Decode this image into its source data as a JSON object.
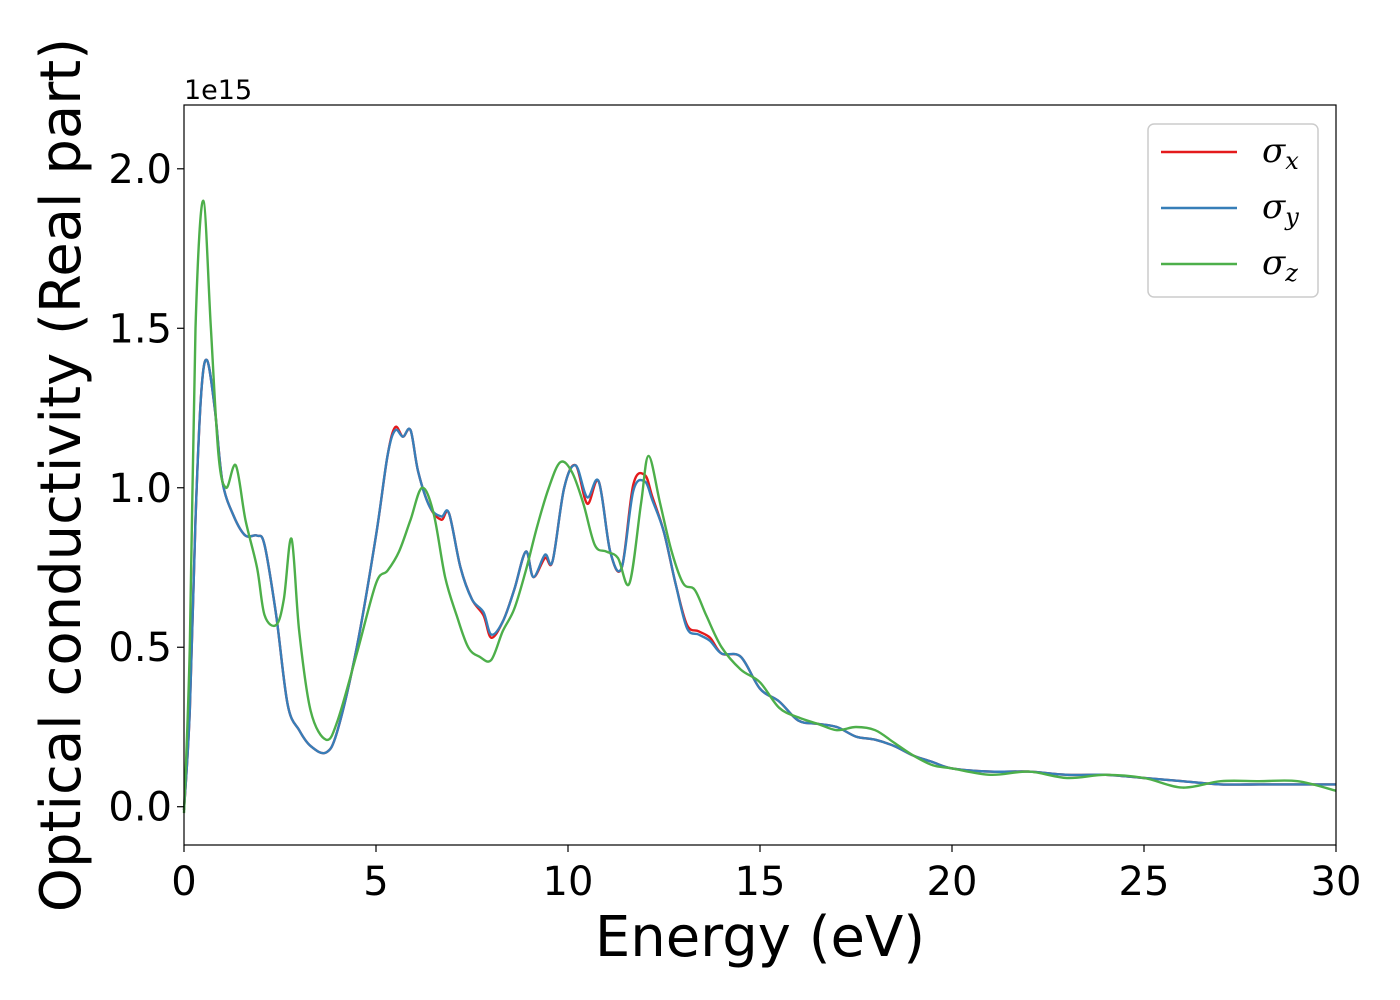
{
  "chart_data": {
    "type": "line",
    "xlabel": "Energy (eV)",
    "ylabel": "Optical conductivity (Real part)",
    "y_offset_label": "1e15",
    "xlim": [
      0,
      30
    ],
    "ylim": [
      -0.12,
      2.2
    ],
    "x_ticks": [
      0,
      5,
      10,
      15,
      20,
      25,
      30
    ],
    "x_tick_labels": [
      "0",
      "5",
      "10",
      "15",
      "20",
      "25",
      "30"
    ],
    "y_ticks": [
      0.0,
      0.5,
      1.0,
      1.5,
      2.0
    ],
    "y_tick_labels": [
      "0.0",
      "0.5",
      "1.0",
      "1.5",
      "2.0"
    ],
    "grid": false,
    "legend_position": "top-right",
    "series": [
      {
        "name": "σx",
        "symbol": "σ",
        "subscript": "x",
        "color": "#e41a1c",
        "x": [
          0,
          0.15,
          0.3,
          0.45,
          0.6,
          0.8,
          1.0,
          1.3,
          1.6,
          1.9,
          2.1,
          2.4,
          2.7,
          3.0,
          3.3,
          3.7,
          4.0,
          4.5,
          5.0,
          5.3,
          5.5,
          5.7,
          5.9,
          6.1,
          6.4,
          6.7,
          6.9,
          7.2,
          7.5,
          7.8,
          8.0,
          8.3,
          8.6,
          8.9,
          9.1,
          9.4,
          9.6,
          9.9,
          10.2,
          10.5,
          10.8,
          11.1,
          11.4,
          11.7,
          12.0,
          12.2,
          12.5,
          12.8,
          13.1,
          13.4,
          13.7,
          14.0,
          14.5,
          15.0,
          15.5,
          16.0,
          16.5,
          17.0,
          17.5,
          18.0,
          18.5,
          19.0,
          19.5,
          20.0,
          21.0,
          22.0,
          23.0,
          24.0,
          25.0,
          26.0,
          27.0,
          28.0,
          29.0,
          30.0
        ],
        "values": [
          -0.01,
          0.3,
          0.9,
          1.3,
          1.4,
          1.25,
          1.02,
          0.91,
          0.85,
          0.85,
          0.82,
          0.6,
          0.32,
          0.24,
          0.19,
          0.17,
          0.24,
          0.5,
          0.85,
          1.1,
          1.19,
          1.16,
          1.18,
          1.05,
          0.94,
          0.9,
          0.92,
          0.75,
          0.65,
          0.6,
          0.53,
          0.58,
          0.68,
          0.8,
          0.72,
          0.78,
          0.77,
          1.0,
          1.07,
          0.95,
          1.02,
          0.8,
          0.75,
          1.01,
          1.04,
          0.97,
          0.86,
          0.7,
          0.57,
          0.55,
          0.53,
          0.48,
          0.47,
          0.37,
          0.33,
          0.27,
          0.26,
          0.25,
          0.22,
          0.21,
          0.19,
          0.16,
          0.14,
          0.12,
          0.11,
          0.11,
          0.1,
          0.1,
          0.09,
          0.08,
          0.07,
          0.07,
          0.07,
          0.07
        ]
      },
      {
        "name": "σy",
        "symbol": "σ",
        "subscript": "y",
        "color": "#377eb8",
        "x": [
          0,
          0.15,
          0.3,
          0.45,
          0.6,
          0.8,
          1.0,
          1.3,
          1.6,
          1.9,
          2.1,
          2.4,
          2.7,
          3.0,
          3.3,
          3.7,
          4.0,
          4.5,
          5.0,
          5.3,
          5.5,
          5.7,
          5.9,
          6.1,
          6.4,
          6.7,
          6.9,
          7.2,
          7.5,
          7.8,
          8.0,
          8.3,
          8.6,
          8.9,
          9.1,
          9.4,
          9.6,
          9.9,
          10.2,
          10.5,
          10.8,
          11.1,
          11.4,
          11.7,
          12.0,
          12.2,
          12.5,
          12.8,
          13.1,
          13.4,
          13.7,
          14.0,
          14.5,
          15.0,
          15.5,
          16.0,
          16.5,
          17.0,
          17.5,
          18.0,
          18.5,
          19.0,
          19.5,
          20.0,
          21.0,
          22.0,
          23.0,
          24.0,
          25.0,
          26.0,
          27.0,
          28.0,
          29.0,
          30.0
        ],
        "values": [
          -0.01,
          0.3,
          0.9,
          1.3,
          1.4,
          1.25,
          1.02,
          0.91,
          0.85,
          0.85,
          0.82,
          0.6,
          0.32,
          0.24,
          0.19,
          0.17,
          0.24,
          0.5,
          0.85,
          1.1,
          1.18,
          1.16,
          1.18,
          1.05,
          0.94,
          0.91,
          0.92,
          0.75,
          0.65,
          0.61,
          0.54,
          0.58,
          0.68,
          0.8,
          0.72,
          0.79,
          0.77,
          1.0,
          1.07,
          0.97,
          1.02,
          0.8,
          0.75,
          0.99,
          1.02,
          0.96,
          0.86,
          0.7,
          0.56,
          0.54,
          0.52,
          0.48,
          0.47,
          0.37,
          0.33,
          0.27,
          0.26,
          0.25,
          0.22,
          0.21,
          0.19,
          0.16,
          0.14,
          0.12,
          0.11,
          0.11,
          0.1,
          0.1,
          0.09,
          0.08,
          0.07,
          0.07,
          0.07,
          0.07
        ]
      },
      {
        "name": "σz",
        "symbol": "σ",
        "subscript": "z",
        "color": "#4daf4a",
        "x": [
          0,
          0.15,
          0.3,
          0.5,
          0.7,
          0.9,
          1.1,
          1.35,
          1.6,
          1.9,
          2.1,
          2.4,
          2.6,
          2.8,
          3.0,
          3.3,
          3.7,
          4.0,
          4.5,
          5.0,
          5.3,
          5.6,
          5.9,
          6.2,
          6.5,
          6.8,
          7.1,
          7.4,
          7.7,
          8.0,
          8.3,
          8.6,
          8.9,
          9.2,
          9.5,
          9.8,
          10.1,
          10.4,
          10.7,
          11.0,
          11.3,
          11.6,
          11.9,
          12.1,
          12.4,
          12.7,
          13.0,
          13.3,
          13.6,
          14.0,
          14.5,
          15.0,
          15.5,
          16.0,
          16.5,
          17.0,
          17.5,
          18.0,
          18.5,
          19.0,
          19.5,
          20.0,
          21.0,
          22.0,
          23.0,
          24.0,
          25.0,
          26.0,
          27.0,
          28.0,
          29.0,
          30.0
        ],
        "values": [
          -0.02,
          0.5,
          1.5,
          1.9,
          1.5,
          1.1,
          1.0,
          1.07,
          0.9,
          0.75,
          0.6,
          0.57,
          0.65,
          0.84,
          0.55,
          0.3,
          0.21,
          0.27,
          0.48,
          0.7,
          0.74,
          0.8,
          0.9,
          1.0,
          0.92,
          0.72,
          0.6,
          0.5,
          0.47,
          0.46,
          0.55,
          0.62,
          0.74,
          0.88,
          1.0,
          1.08,
          1.05,
          0.95,
          0.82,
          0.8,
          0.78,
          0.7,
          0.95,
          1.1,
          0.95,
          0.8,
          0.7,
          0.68,
          0.6,
          0.5,
          0.43,
          0.39,
          0.31,
          0.28,
          0.26,
          0.24,
          0.25,
          0.24,
          0.2,
          0.16,
          0.13,
          0.12,
          0.1,
          0.11,
          0.09,
          0.1,
          0.09,
          0.06,
          0.08,
          0.08,
          0.08,
          0.05
        ]
      }
    ]
  }
}
